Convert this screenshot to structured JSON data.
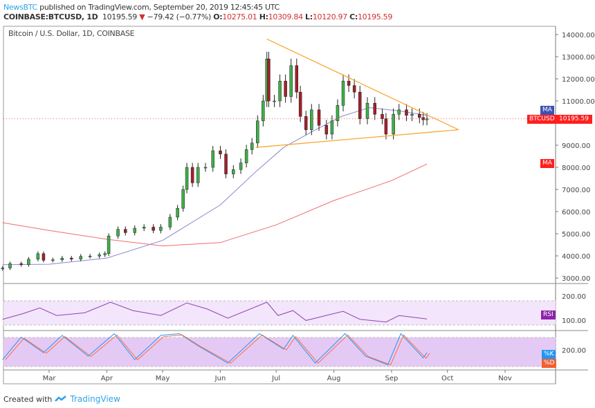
{
  "header": {
    "publisher": "NewsBTC",
    "published_text": " published on TradingView.com, September 20, 2019 12:45:45 UTC",
    "symbol": "COINBASE:BTCUSD, 1D",
    "last": "10195.59",
    "change": "−79.42 (−0.77%)",
    "o_label": "O:",
    "o": "10275.01",
    "h_label": "H:",
    "h": "10309.84",
    "l_label": "L:",
    "l": "10120.97",
    "c_label": "C:",
    "c": "10195.59"
  },
  "footer": {
    "created_with": "Created with",
    "brand": "TradingView"
  },
  "colors": {
    "up": "#3fae49",
    "down": "#a3202a",
    "ma50": "#8c87cf",
    "ma200": "#f26b6b",
    "triangle": "#f7a833",
    "price_tag": "#ff1f1f",
    "ma_tag": "#3f51b5",
    "rsi": "#8e44ad",
    "k": "#2196f3",
    "d": "#ff6d3b"
  },
  "chart_data": {
    "type": "candlestick",
    "title": "Bitcoin / U.S. Dollar, 1D, COINBASE",
    "price_axis": {
      "ticks": [
        3000,
        4000,
        5000,
        6000,
        7000,
        8000,
        9000,
        10000,
        11000,
        12000,
        13000,
        14000
      ],
      "labels": [
        "3000.00",
        "4000.00",
        "5000.00",
        "6000.00",
        "7000.00",
        "8000.00",
        "9000.00",
        "",
        "11000.00",
        "12000.00",
        "13000.00",
        "14000.00"
      ]
    },
    "x_axis": {
      "ticks": [
        "2019-03-01",
        "2019-04-01",
        "2019-05-01",
        "2019-06-01",
        "2019-07-01",
        "2019-08-01",
        "2019-09-01",
        "2019-10-01",
        "2019-11-01"
      ],
      "labels": [
        "Mar",
        "Apr",
        "May",
        "Jun",
        "Jul",
        "Aug",
        "Sep",
        "Oct",
        "Nov"
      ]
    },
    "closes": [
      [
        "2019-02-04",
        3450
      ],
      [
        "2019-02-08",
        3650
      ],
      [
        "2019-02-14",
        3600
      ],
      [
        "2019-02-18",
        3850
      ],
      [
        "2019-02-23",
        4100
      ],
      [
        "2019-02-26",
        3800
      ],
      [
        "2019-03-03",
        3820
      ],
      [
        "2019-03-08",
        3900
      ],
      [
        "2019-03-13",
        3850
      ],
      [
        "2019-03-18",
        3980
      ],
      [
        "2019-03-23",
        3990
      ],
      [
        "2019-03-28",
        4050
      ],
      [
        "2019-03-31",
        4100
      ],
      [
        "2019-04-02",
        4900
      ],
      [
        "2019-04-07",
        5200
      ],
      [
        "2019-04-11",
        5050
      ],
      [
        "2019-04-16",
        5250
      ],
      [
        "2019-04-21",
        5300
      ],
      [
        "2019-04-26",
        5150
      ],
      [
        "2019-04-30",
        5300
      ],
      [
        "2019-05-05",
        5750
      ],
      [
        "2019-05-09",
        6150
      ],
      [
        "2019-05-12",
        7000
      ],
      [
        "2019-05-14",
        8000
      ],
      [
        "2019-05-17",
        7300
      ],
      [
        "2019-05-20",
        8000
      ],
      [
        "2019-05-24",
        8000
      ],
      [
        "2019-05-28",
        8750
      ],
      [
        "2019-06-01",
        8600
      ],
      [
        "2019-06-04",
        7700
      ],
      [
        "2019-06-08",
        7900
      ],
      [
        "2019-06-12",
        8200
      ],
      [
        "2019-06-15",
        8800
      ],
      [
        "2019-06-18",
        9100
      ],
      [
        "2019-06-21",
        10100
      ],
      [
        "2019-06-24",
        11000
      ],
      [
        "2019-06-26",
        12900
      ],
      [
        "2019-06-27",
        11000
      ],
      [
        "2019-06-30",
        11000
      ],
      [
        "2019-07-03",
        11900
      ],
      [
        "2019-07-06",
        11200
      ],
      [
        "2019-07-09",
        12600
      ],
      [
        "2019-07-12",
        11400
      ],
      [
        "2019-07-14",
        10300
      ],
      [
        "2019-07-17",
        9700
      ],
      [
        "2019-07-20",
        10600
      ],
      [
        "2019-07-24",
        9900
      ],
      [
        "2019-07-28",
        9500
      ],
      [
        "2019-07-31",
        10100
      ],
      [
        "2019-08-03",
        10800
      ],
      [
        "2019-08-06",
        11900
      ],
      [
        "2019-08-09",
        11700
      ],
      [
        "2019-08-12",
        11400
      ],
      [
        "2019-08-15",
        10200
      ],
      [
        "2019-08-19",
        10900
      ],
      [
        "2019-08-23",
        10400
      ],
      [
        "2019-08-27",
        10200
      ],
      [
        "2019-08-29",
        9500
      ],
      [
        "2019-09-02",
        10400
      ],
      [
        "2019-09-05",
        10600
      ],
      [
        "2019-09-09",
        10350
      ],
      [
        "2019-09-12",
        10400
      ],
      [
        "2019-09-16",
        10250
      ],
      [
        "2019-09-18",
        10150
      ],
      [
        "2019-09-20",
        10195.59
      ]
    ],
    "ma50": [
      [
        "2019-02-04",
        3600
      ],
      [
        "2019-03-01",
        3620
      ],
      [
        "2019-04-01",
        3900
      ],
      [
        "2019-05-01",
        4700
      ],
      [
        "2019-06-01",
        6300
      ],
      [
        "2019-06-20",
        7800
      ],
      [
        "2019-07-05",
        8900
      ],
      [
        "2019-07-20",
        9600
      ],
      [
        "2019-08-05",
        10300
      ],
      [
        "2019-08-20",
        10700
      ],
      [
        "2019-09-05",
        10550
      ],
      [
        "2019-09-20",
        10350
      ]
    ],
    "ma200": [
      [
        "2019-02-04",
        5500
      ],
      [
        "2019-03-01",
        5150
      ],
      [
        "2019-04-01",
        4750
      ],
      [
        "2019-05-01",
        4450
      ],
      [
        "2019-06-01",
        4600
      ],
      [
        "2019-07-01",
        5400
      ],
      [
        "2019-08-01",
        6500
      ],
      [
        "2019-09-01",
        7400
      ],
      [
        "2019-09-20",
        8150
      ]
    ],
    "triangle": {
      "upper": [
        [
          "2019-06-26",
          13800
        ],
        [
          "2019-10-07",
          9700
        ]
      ],
      "lower": [
        [
          "2019-06-20",
          8900
        ],
        [
          "2019-10-07",
          9700
        ]
      ]
    },
    "last_price_label": "10195.59",
    "symbol_tag": "BTCUSD",
    "ma_tags": [
      "MA",
      "MA"
    ],
    "rsi": {
      "label": "RSI",
      "axis": [
        "200.00",
        "100.00"
      ],
      "values": [
        [
          "2019-02-04",
          45
        ],
        [
          "2019-02-15",
          60
        ],
        [
          "2019-02-24",
          75
        ],
        [
          "2019-03-05",
          55
        ],
        [
          "2019-03-20",
          62
        ],
        [
          "2019-04-03",
          90
        ],
        [
          "2019-04-15",
          68
        ],
        [
          "2019-04-30",
          55
        ],
        [
          "2019-05-14",
          88
        ],
        [
          "2019-05-25",
          72
        ],
        [
          "2019-06-05",
          48
        ],
        [
          "2019-06-26",
          90
        ],
        [
          "2019-07-02",
          55
        ],
        [
          "2019-07-10",
          68
        ],
        [
          "2019-07-17",
          42
        ],
        [
          "2019-08-06",
          66
        ],
        [
          "2019-08-15",
          45
        ],
        [
          "2019-08-29",
          38
        ],
        [
          "2019-09-05",
          55
        ],
        [
          "2019-09-20",
          46
        ]
      ]
    },
    "stoch": {
      "k_label": "%K",
      "d_label": "%D",
      "axis": [
        "200.00"
      ],
      "values": [
        [
          "2019-02-04",
          20
        ],
        [
          "2019-02-14",
          85
        ],
        [
          "2019-02-26",
          40
        ],
        [
          "2019-03-08",
          90
        ],
        [
          "2019-03-22",
          30
        ],
        [
          "2019-04-05",
          95
        ],
        [
          "2019-04-16",
          20
        ],
        [
          "2019-04-30",
          90
        ],
        [
          "2019-05-10",
          95
        ],
        [
          "2019-05-20",
          60
        ],
        [
          "2019-06-05",
          10
        ],
        [
          "2019-06-22",
          95
        ],
        [
          "2019-07-05",
          50
        ],
        [
          "2019-07-10",
          90
        ],
        [
          "2019-07-22",
          10
        ],
        [
          "2019-08-07",
          95
        ],
        [
          "2019-08-18",
          30
        ],
        [
          "2019-08-30",
          5
        ],
        [
          "2019-09-06",
          95
        ],
        [
          "2019-09-18",
          25
        ],
        [
          "2019-09-20",
          40
        ]
      ]
    }
  }
}
